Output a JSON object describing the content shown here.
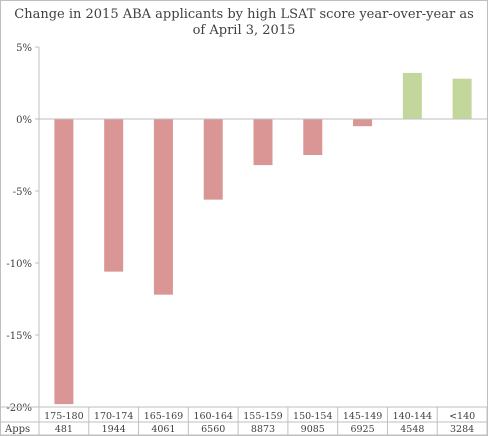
{
  "chart_data": {
    "type": "bar",
    "title": "Change in 2015 ABA applicants by high LSAT score year-over-year as of April  3, 2015",
    "title_lines": [
      "Change in 2015 ABA applicants by high LSAT score year-over-year as",
      "of April  3, 2015"
    ],
    "categories": [
      "175-180",
      "170-174",
      "165-169",
      "160-164",
      "155-159",
      "150-154",
      "145-149",
      "140-144",
      "<140"
    ],
    "values": [
      -19.8,
      -10.6,
      -12.2,
      -5.6,
      -3.2,
      -2.5,
      -0.5,
      3.2,
      2.8
    ],
    "apps_label": "Apps",
    "apps": [
      "481",
      "1944",
      "4061",
      "6560",
      "8873",
      "9085",
      "6925",
      "4548",
      "3284"
    ],
    "ylim": [
      -20,
      5
    ],
    "yticks": [
      5,
      0,
      -5,
      -10,
      -15,
      -20
    ],
    "ytick_labels": [
      "5%",
      "0%",
      "-5%",
      "-10%",
      "-15%",
      "-20%"
    ],
    "grid": false,
    "colors": {
      "negative": "#d99694",
      "positive": "#c3d69b",
      "axis": "#bfbfbf"
    }
  }
}
